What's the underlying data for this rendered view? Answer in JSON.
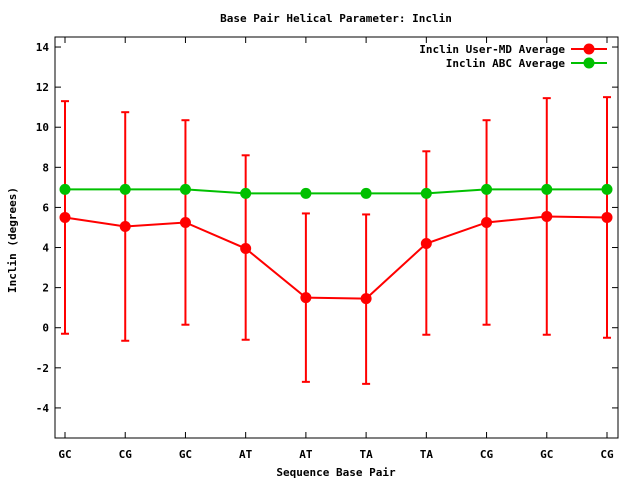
{
  "chart_data": {
    "type": "line",
    "title": "Base Pair Helical Parameter: Inclin",
    "xlabel": "Sequence Base Pair",
    "ylabel": "Inclin (degrees)",
    "categories": [
      "GC",
      "CG",
      "GC",
      "AT",
      "AT",
      "TA",
      "TA",
      "CG",
      "GC",
      "CG"
    ],
    "ylim": [
      -5.5,
      14.5
    ],
    "yticks": [
      -4,
      -2,
      0,
      2,
      4,
      6,
      8,
      10,
      12,
      14
    ],
    "grid": false,
    "legend_position": "top-right",
    "series": [
      {
        "name": "Inclin User-MD Average",
        "color": "#ff0000",
        "values": [
          5.5,
          5.05,
          5.25,
          3.95,
          1.5,
          1.45,
          4.2,
          5.25,
          5.55,
          5.5
        ],
        "error_low": [
          -0.3,
          -0.65,
          0.15,
          -0.6,
          -2.7,
          -2.8,
          -0.35,
          0.15,
          -0.35,
          -0.5
        ],
        "error_high": [
          11.3,
          10.75,
          10.35,
          8.6,
          5.7,
          5.65,
          8.8,
          10.35,
          11.45,
          11.5
        ]
      },
      {
        "name": "Inclin ABC Average",
        "color": "#00c000",
        "values": [
          6.9,
          6.9,
          6.9,
          6.7,
          6.7,
          6.7,
          6.7,
          6.9,
          6.9,
          6.9
        ]
      }
    ]
  }
}
